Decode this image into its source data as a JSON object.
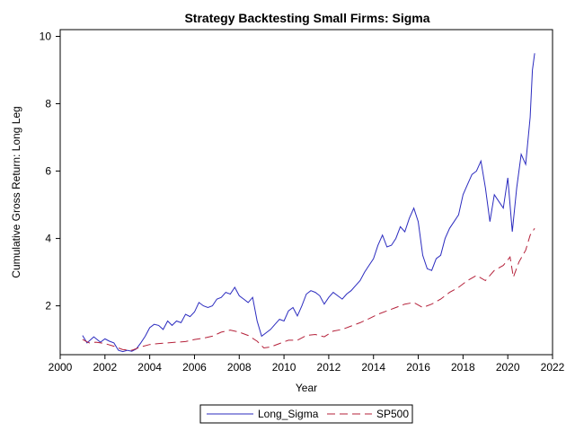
{
  "chart_data": {
    "type": "line",
    "title": "Strategy Backtesting Small Firms: Sigma",
    "xlabel": "Year",
    "ylabel": "Cumulative Gross Return: Long Leg",
    "xlim": [
      2000,
      2022
    ],
    "ylim": [
      0.55,
      10.2
    ],
    "x_ticks": [
      2000,
      2002,
      2004,
      2006,
      2008,
      2010,
      2012,
      2014,
      2016,
      2018,
      2020,
      2022
    ],
    "y_ticks": [
      2,
      4,
      6,
      8,
      10
    ],
    "grid": false,
    "legend_position": "bottom",
    "series": [
      {
        "name": "Long_Sigma",
        "color": "#2b2bbf",
        "style": "solid",
        "points": [
          [
            2001.0,
            1.12
          ],
          [
            2001.2,
            0.9
          ],
          [
            2001.5,
            1.08
          ],
          [
            2001.8,
            0.92
          ],
          [
            2002.0,
            1.02
          ],
          [
            2002.2,
            0.95
          ],
          [
            2002.4,
            0.9
          ],
          [
            2002.6,
            0.68
          ],
          [
            2002.8,
            0.64
          ],
          [
            2003.0,
            0.68
          ],
          [
            2003.2,
            0.65
          ],
          [
            2003.4,
            0.72
          ],
          [
            2003.6,
            0.9
          ],
          [
            2003.8,
            1.1
          ],
          [
            2004.0,
            1.35
          ],
          [
            2004.2,
            1.45
          ],
          [
            2004.4,
            1.42
          ],
          [
            2004.6,
            1.3
          ],
          [
            2004.8,
            1.55
          ],
          [
            2005.0,
            1.42
          ],
          [
            2005.2,
            1.55
          ],
          [
            2005.4,
            1.5
          ],
          [
            2005.6,
            1.75
          ],
          [
            2005.8,
            1.68
          ],
          [
            2006.0,
            1.82
          ],
          [
            2006.2,
            2.1
          ],
          [
            2006.4,
            2.0
          ],
          [
            2006.6,
            1.95
          ],
          [
            2006.8,
            2.0
          ],
          [
            2007.0,
            2.2
          ],
          [
            2007.2,
            2.25
          ],
          [
            2007.4,
            2.4
          ],
          [
            2007.6,
            2.35
          ],
          [
            2007.8,
            2.55
          ],
          [
            2008.0,
            2.3
          ],
          [
            2008.2,
            2.2
          ],
          [
            2008.4,
            2.1
          ],
          [
            2008.6,
            2.25
          ],
          [
            2008.8,
            1.55
          ],
          [
            2009.0,
            1.1
          ],
          [
            2009.2,
            1.2
          ],
          [
            2009.4,
            1.3
          ],
          [
            2009.6,
            1.45
          ],
          [
            2009.8,
            1.6
          ],
          [
            2010.0,
            1.55
          ],
          [
            2010.2,
            1.85
          ],
          [
            2010.4,
            1.95
          ],
          [
            2010.6,
            1.7
          ],
          [
            2010.8,
            2.0
          ],
          [
            2011.0,
            2.35
          ],
          [
            2011.2,
            2.45
          ],
          [
            2011.4,
            2.4
          ],
          [
            2011.6,
            2.3
          ],
          [
            2011.8,
            2.05
          ],
          [
            2012.0,
            2.25
          ],
          [
            2012.2,
            2.4
          ],
          [
            2012.4,
            2.3
          ],
          [
            2012.6,
            2.2
          ],
          [
            2012.8,
            2.35
          ],
          [
            2013.0,
            2.45
          ],
          [
            2013.2,
            2.6
          ],
          [
            2013.4,
            2.75
          ],
          [
            2013.6,
            3.0
          ],
          [
            2013.8,
            3.2
          ],
          [
            2014.0,
            3.4
          ],
          [
            2014.2,
            3.8
          ],
          [
            2014.4,
            4.1
          ],
          [
            2014.6,
            3.75
          ],
          [
            2014.8,
            3.8
          ],
          [
            2015.0,
            4.0
          ],
          [
            2015.2,
            4.35
          ],
          [
            2015.4,
            4.2
          ],
          [
            2015.6,
            4.6
          ],
          [
            2015.8,
            4.9
          ],
          [
            2016.0,
            4.5
          ],
          [
            2016.2,
            3.5
          ],
          [
            2016.4,
            3.1
          ],
          [
            2016.6,
            3.05
          ],
          [
            2016.8,
            3.4
          ],
          [
            2017.0,
            3.5
          ],
          [
            2017.2,
            4.0
          ],
          [
            2017.4,
            4.3
          ],
          [
            2017.6,
            4.5
          ],
          [
            2017.8,
            4.7
          ],
          [
            2018.0,
            5.3
          ],
          [
            2018.2,
            5.6
          ],
          [
            2018.4,
            5.9
          ],
          [
            2018.6,
            6.0
          ],
          [
            2018.8,
            6.3
          ],
          [
            2019.0,
            5.5
          ],
          [
            2019.2,
            4.5
          ],
          [
            2019.4,
            5.3
          ],
          [
            2019.6,
            5.1
          ],
          [
            2019.8,
            4.9
          ],
          [
            2020.0,
            5.8
          ],
          [
            2020.2,
            4.2
          ],
          [
            2020.4,
            5.5
          ],
          [
            2020.6,
            6.5
          ],
          [
            2020.8,
            6.2
          ],
          [
            2021.0,
            7.6
          ],
          [
            2021.1,
            9.0
          ],
          [
            2021.2,
            9.5
          ]
        ]
      },
      {
        "name": "SP500",
        "color": "#b5213a",
        "style": "dashed",
        "points": [
          [
            2001.0,
            1.0
          ],
          [
            2001.3,
            0.9
          ],
          [
            2001.6,
            0.92
          ],
          [
            2002.0,
            0.88
          ],
          [
            2002.4,
            0.8
          ],
          [
            2002.8,
            0.7
          ],
          [
            2003.2,
            0.68
          ],
          [
            2003.6,
            0.78
          ],
          [
            2004.0,
            0.85
          ],
          [
            2004.4,
            0.88
          ],
          [
            2004.8,
            0.9
          ],
          [
            2005.2,
            0.92
          ],
          [
            2005.6,
            0.94
          ],
          [
            2006.0,
            1.0
          ],
          [
            2006.4,
            1.04
          ],
          [
            2006.8,
            1.1
          ],
          [
            2007.2,
            1.22
          ],
          [
            2007.6,
            1.28
          ],
          [
            2008.0,
            1.22
          ],
          [
            2008.4,
            1.12
          ],
          [
            2008.8,
            0.95
          ],
          [
            2009.1,
            0.75
          ],
          [
            2009.4,
            0.78
          ],
          [
            2009.8,
            0.88
          ],
          [
            2010.2,
            0.98
          ],
          [
            2010.6,
            0.98
          ],
          [
            2011.0,
            1.12
          ],
          [
            2011.4,
            1.15
          ],
          [
            2011.8,
            1.08
          ],
          [
            2012.2,
            1.25
          ],
          [
            2012.6,
            1.3
          ],
          [
            2013.0,
            1.4
          ],
          [
            2013.4,
            1.5
          ],
          [
            2013.8,
            1.62
          ],
          [
            2014.2,
            1.75
          ],
          [
            2014.6,
            1.85
          ],
          [
            2015.0,
            1.95
          ],
          [
            2015.4,
            2.05
          ],
          [
            2015.8,
            2.1
          ],
          [
            2016.2,
            1.95
          ],
          [
            2016.6,
            2.05
          ],
          [
            2017.0,
            2.2
          ],
          [
            2017.4,
            2.4
          ],
          [
            2017.8,
            2.55
          ],
          [
            2018.2,
            2.75
          ],
          [
            2018.6,
            2.9
          ],
          [
            2019.0,
            2.75
          ],
          [
            2019.4,
            3.05
          ],
          [
            2019.8,
            3.2
          ],
          [
            2020.1,
            3.45
          ],
          [
            2020.25,
            2.85
          ],
          [
            2020.5,
            3.3
          ],
          [
            2020.8,
            3.65
          ],
          [
            2021.0,
            4.1
          ],
          [
            2021.2,
            4.3
          ]
        ]
      }
    ]
  }
}
